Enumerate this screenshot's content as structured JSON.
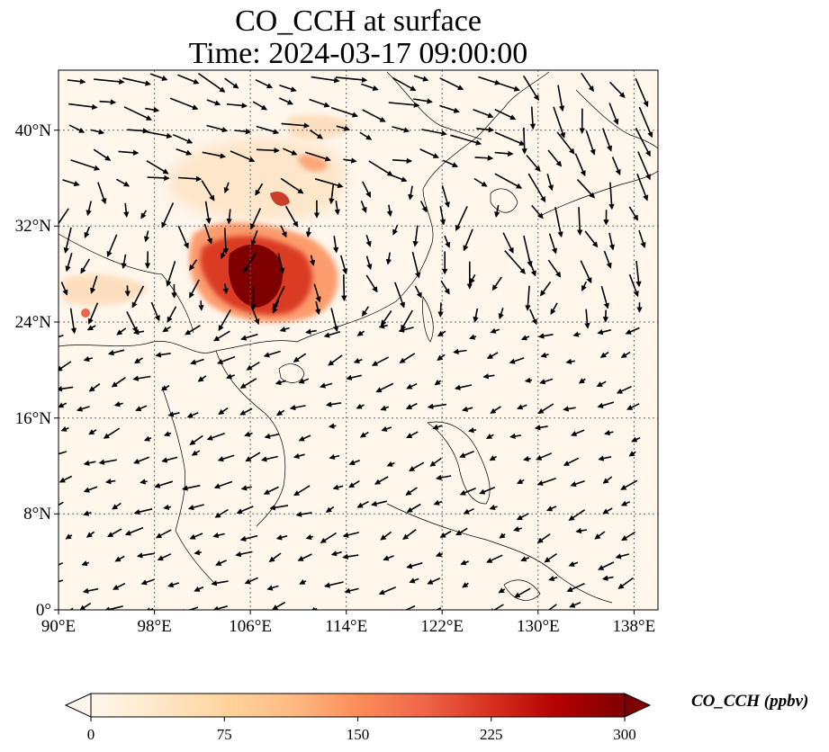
{
  "title": {
    "line1": "CO_CCH at surface",
    "line2": "Time: 2024-03-17 09:00:00"
  },
  "map": {
    "lon_range": [
      90,
      140
    ],
    "lat_range": [
      0,
      45
    ],
    "lon_ticks": [
      "90°E",
      "98°E",
      "106°E",
      "114°E",
      "122°E",
      "130°E",
      "138°E"
    ],
    "lat_ticks": [
      "0°",
      "8°N",
      "16°N",
      "24°N",
      "32°N",
      "40°N"
    ],
    "field_max_region": "southwest China (Sichuan / Chongqing)",
    "wind_vectors": true,
    "gridlines": "dotted"
  },
  "colorbar": {
    "label": "CO_CCH (ppbv)",
    "ticks": [
      "0",
      "75",
      "150",
      "225",
      "300"
    ],
    "range": [
      0,
      300
    ],
    "colormap": "OrRd",
    "extend": "both",
    "colors": [
      "#fff7ec",
      "#fee8c8",
      "#fdd49e",
      "#fdbb84",
      "#fc8d59",
      "#ef6548",
      "#d7301f",
      "#b30000",
      "#7f0000"
    ]
  }
}
